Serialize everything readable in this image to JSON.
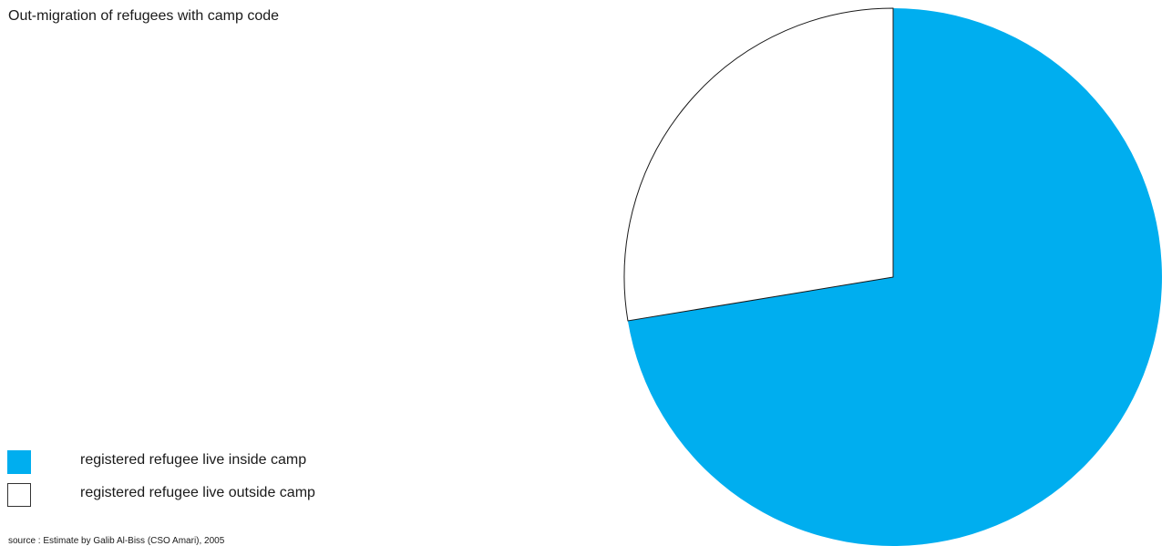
{
  "chart_data": {
    "type": "pie",
    "title": "Out-migration of refugees with camp code",
    "slices": [
      {
        "label": "registered refugee live inside camp",
        "value": 72.4,
        "color": "#00aeef"
      },
      {
        "label": "registered refugee live outside camp",
        "value": 27.6,
        "color": "#ffffff"
      }
    ],
    "start_angle": "12 o'clock",
    "direction": "clockwise",
    "legend_position": "bottom-left",
    "source": "source : Estimate by Galib Al-Biss (CSO Amari), 2005"
  }
}
